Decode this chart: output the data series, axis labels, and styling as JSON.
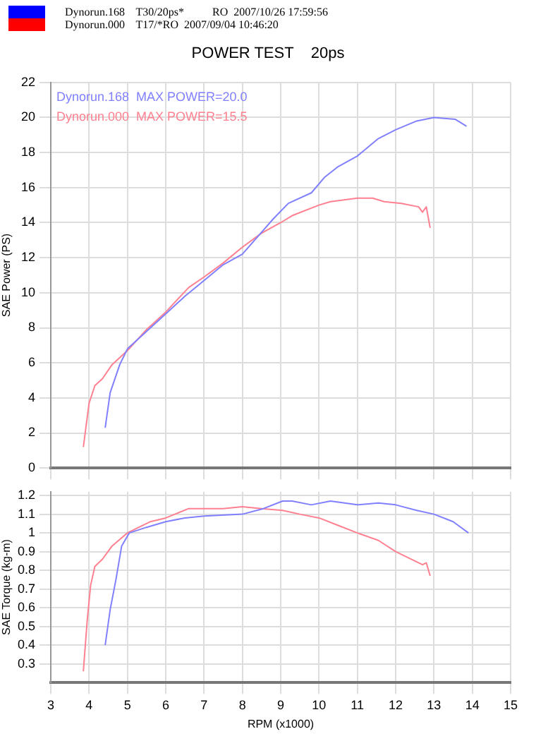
{
  "chart_data": [
    {
      "type": "line",
      "title": "POWER TEST    20ps",
      "annotations": [
        "Dynorun.168    T30/20ps*          RO  2007/10/26 17:59:56",
        "Dynorun.000    T17/*RO  2007/09/04 10:46:20"
      ],
      "ylabel": "SAE Power (PS)",
      "xlim": [
        3,
        15
      ],
      "xticks": [
        3,
        4,
        5,
        6,
        7,
        8,
        9,
        10,
        11,
        12,
        13,
        14,
        15
      ],
      "ylim": [
        0,
        22
      ],
      "yticks": [
        0,
        2,
        4,
        6,
        8,
        10,
        12,
        14,
        16,
        18,
        20,
        22
      ],
      "grid": true,
      "tick_labels": "y",
      "legend": "top left",
      "series": [
        {
          "name": "Dynorun.168  MAX POWER=20.0",
          "color": "#8080ff",
          "x": [
            4.42,
            4.55,
            4.8,
            5.0,
            5.5,
            6.0,
            6.5,
            7.0,
            7.5,
            8.0,
            8.4,
            8.8,
            9.2,
            9.8,
            10.15,
            10.5,
            11.0,
            11.55,
            12.0,
            12.55,
            13.0,
            13.55,
            13.85
          ],
          "values": [
            2.3,
            4.3,
            5.9,
            6.8,
            7.8,
            8.8,
            9.8,
            10.7,
            11.6,
            12.2,
            13.2,
            14.2,
            15.1,
            15.7,
            16.6,
            17.2,
            17.8,
            18.8,
            19.3,
            19.8,
            20.0,
            19.9,
            19.5
          ]
        },
        {
          "name": "Dynorun.000  MAX POWER=15.5",
          "color": "#ff8090",
          "x": [
            3.85,
            4.0,
            4.15,
            4.35,
            4.6,
            5.0,
            5.5,
            6.0,
            6.6,
            7.0,
            7.5,
            8.0,
            8.5,
            9.0,
            9.3,
            10.0,
            10.3,
            11.0,
            11.4,
            11.7,
            12.15,
            12.6,
            12.7,
            12.8,
            12.9
          ],
          "values": [
            1.2,
            3.7,
            4.7,
            5.1,
            5.9,
            6.7,
            7.9,
            8.9,
            10.3,
            10.9,
            11.7,
            12.6,
            13.4,
            14.0,
            14.4,
            15.0,
            15.2,
            15.4,
            15.4,
            15.2,
            15.1,
            14.9,
            14.6,
            14.9,
            13.7
          ]
        }
      ]
    },
    {
      "type": "line",
      "ylabel": "SAE Torque (kg-m)",
      "xlabel": "RPM (x1000)",
      "xlim": [
        3,
        15
      ],
      "xticks": [
        3,
        4,
        5,
        6,
        7,
        8,
        9,
        10,
        11,
        12,
        13,
        14,
        15
      ],
      "ylim": [
        0.2,
        1.22
      ],
      "yticks": [
        0.3,
        0.4,
        0.5,
        0.6,
        0.7,
        0.8,
        0.9,
        1.0,
        1.1,
        1.2
      ],
      "grid": true,
      "series": [
        {
          "color": "#8080ff",
          "x": [
            4.42,
            4.55,
            4.7,
            4.85,
            5.05,
            5.5,
            6.0,
            6.5,
            7.0,
            8.0,
            8.55,
            9.05,
            9.3,
            9.8,
            10.3,
            11.0,
            11.55,
            12.0,
            12.55,
            13.0,
            13.5,
            13.9
          ],
          "values": [
            0.4,
            0.59,
            0.75,
            0.93,
            1.0,
            1.03,
            1.06,
            1.08,
            1.09,
            1.1,
            1.13,
            1.17,
            1.17,
            1.15,
            1.17,
            1.15,
            1.16,
            1.15,
            1.12,
            1.1,
            1.06,
            1.0
          ]
        },
        {
          "color": "#ff8090",
          "x": [
            3.85,
            3.95,
            4.04,
            4.15,
            4.35,
            4.6,
            5.0,
            5.6,
            6.0,
            6.6,
            7.5,
            8.0,
            8.5,
            9.05,
            9.5,
            10.0,
            10.5,
            11.0,
            11.55,
            12.0,
            12.5,
            12.7,
            12.8,
            12.9
          ],
          "values": [
            0.26,
            0.53,
            0.72,
            0.82,
            0.86,
            0.93,
            1.0,
            1.06,
            1.08,
            1.13,
            1.13,
            1.14,
            1.13,
            1.12,
            1.1,
            1.08,
            1.04,
            1.0,
            0.96,
            0.9,
            0.85,
            0.83,
            0.84,
            0.77
          ]
        }
      ]
    }
  ]
}
